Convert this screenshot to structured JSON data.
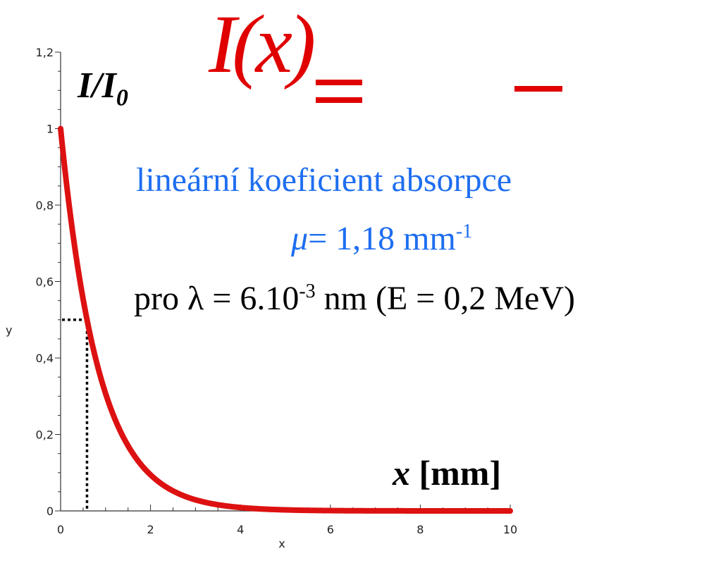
{
  "chart_data": {
    "type": "line",
    "function": "exp(-1.18*x)",
    "x": [
      0,
      0.25,
      0.5,
      0.75,
      1,
      1.25,
      1.5,
      1.75,
      2,
      2.5,
      3,
      3.5,
      4,
      4.5,
      5,
      6,
      7,
      8,
      9,
      10
    ],
    "y": [
      1,
      0.745,
      0.554,
      0.413,
      0.307,
      0.229,
      0.17,
      0.127,
      0.094,
      0.052,
      0.029,
      0.016,
      0.009,
      0.005,
      0.003,
      0.001,
      0,
      0,
      0,
      0
    ],
    "xlim": [
      0,
      10
    ],
    "ylim": [
      0,
      1.2
    ],
    "x_tick_labels": [
      "0",
      "2",
      "4",
      "6",
      "8",
      "10"
    ],
    "y_tick_labels": [
      "0",
      "0,2",
      "0,4",
      "0,6",
      "0,8",
      "1",
      "1,2"
    ],
    "x_axis_word": "x",
    "y_axis_word": "y",
    "half_value_marker": {
      "x": 0.587,
      "y": 0.5
    },
    "series": [
      {
        "values_from": "y",
        "color": "#dd1111"
      }
    ],
    "grid": false
  },
  "annotations": {
    "equation_lhs": "I(x)",
    "ylabel_main": "I/I",
    "ylabel_sub": "0",
    "coef_title": "lineární koeficient absorpce",
    "mu_symbol": "μ",
    "mu_text": "= 1,18 mm",
    "mu_exp": "-1",
    "lambda_pre": "pro λ = 6.10",
    "lambda_exp": "-3",
    "lambda_post": " nm (E = 0,2 MeV)",
    "xlabel_var": "x",
    "xlabel_unit": " [mm]"
  },
  "colors": {
    "curve": "#dd1111",
    "equation": "#e00000",
    "coef": "#1e6ef0",
    "axis": "#333333"
  }
}
